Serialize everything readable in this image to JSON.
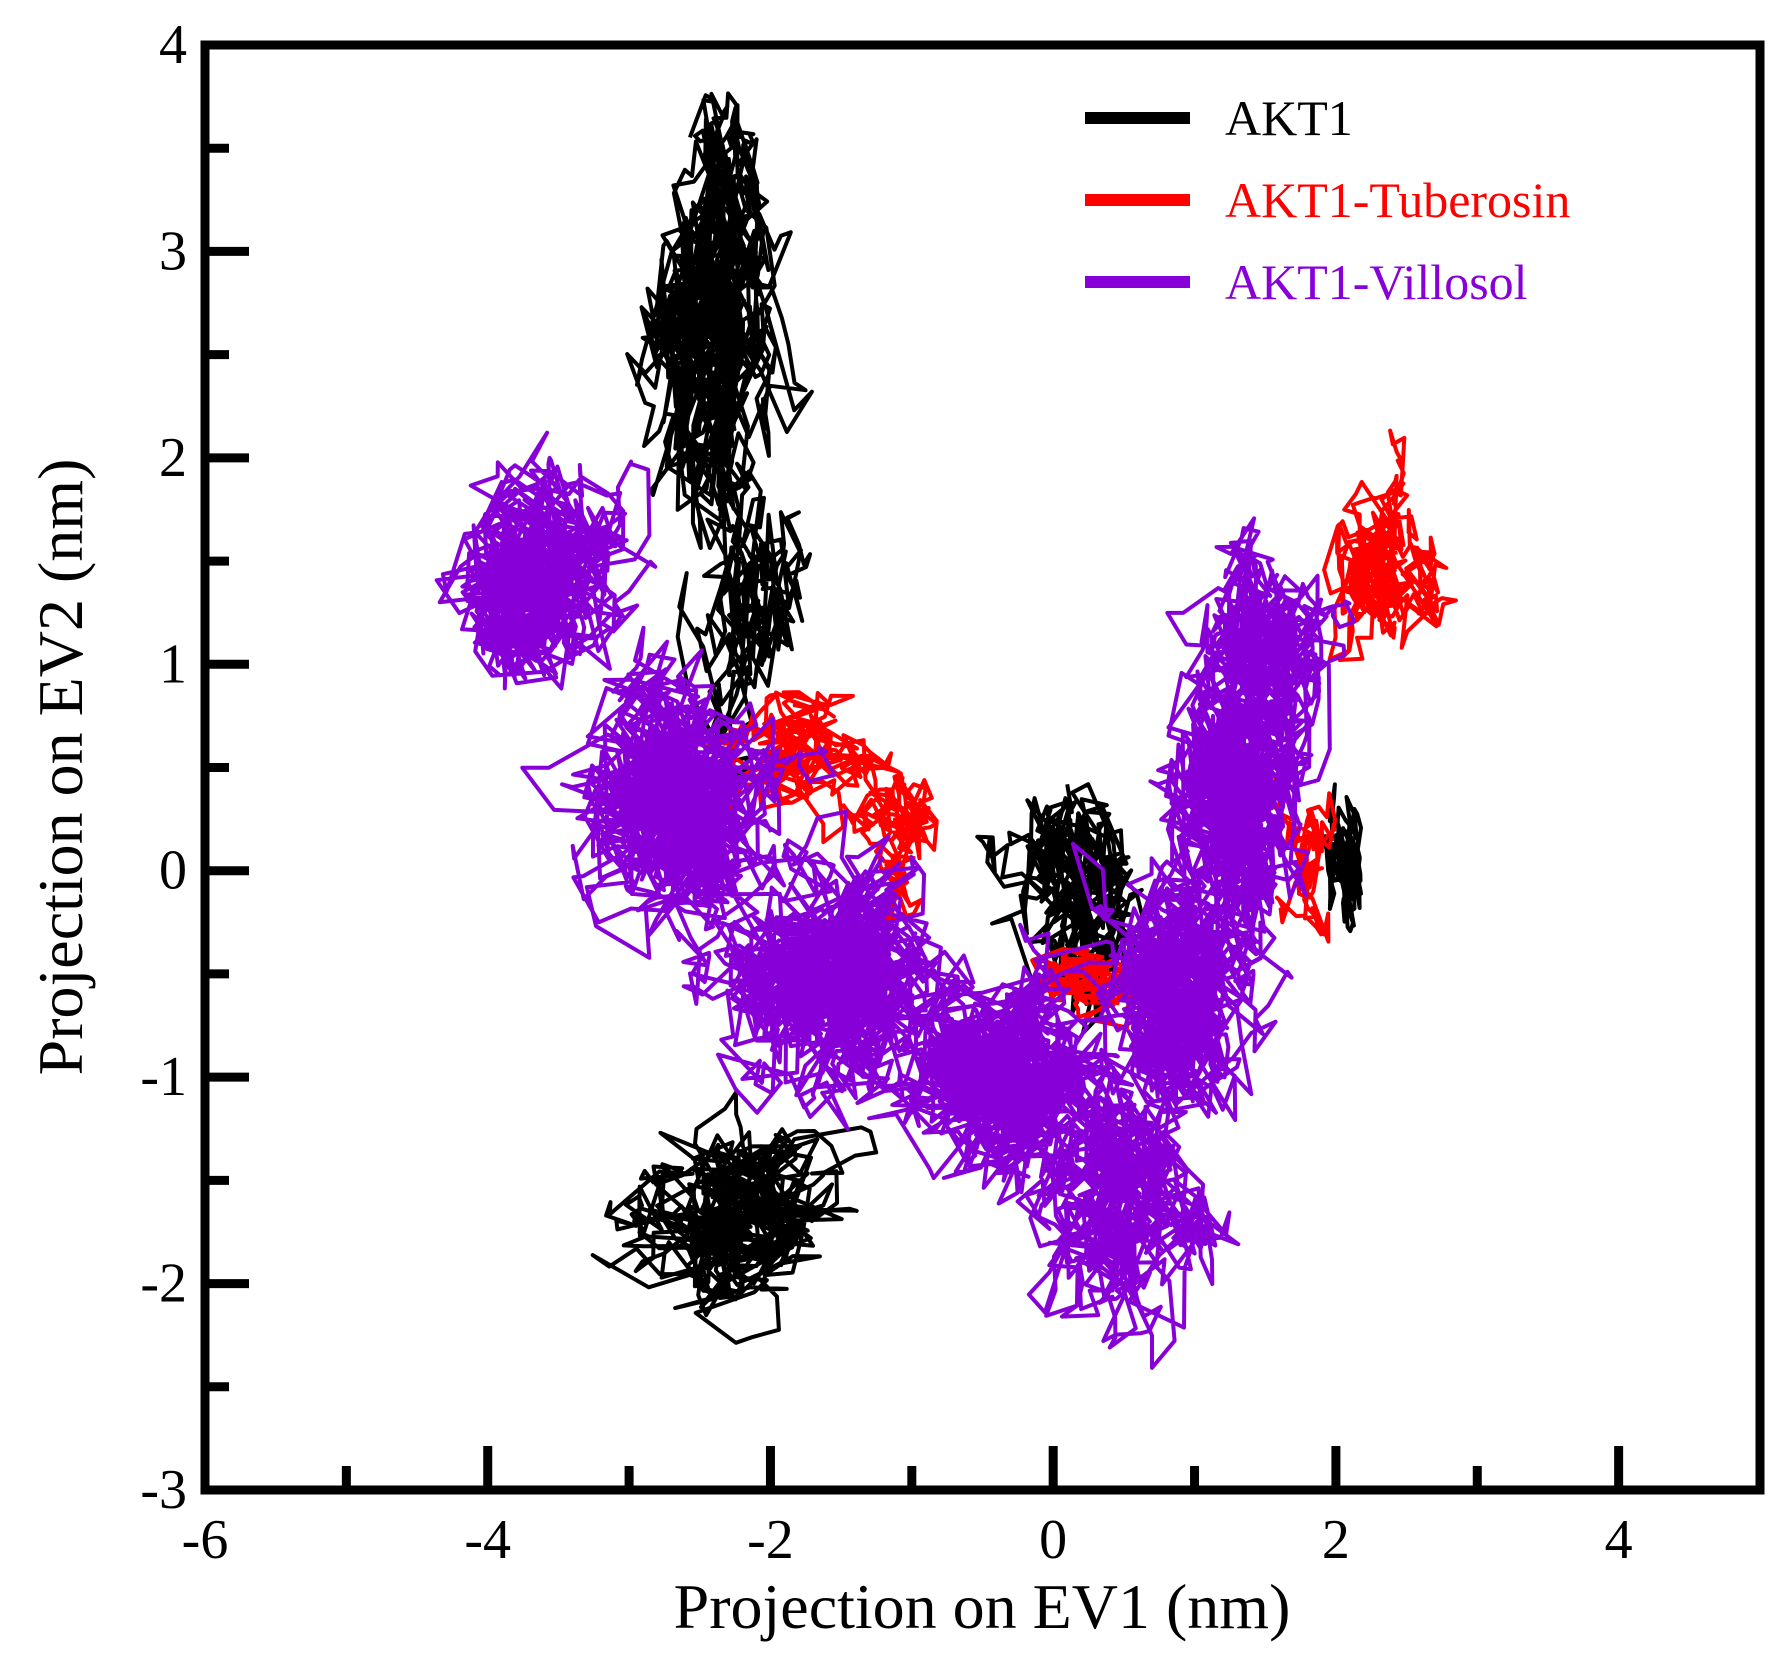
{
  "chart_data": {
    "type": "scatter",
    "title": "",
    "xlabel": "Projection on EV1 (nm)",
    "ylabel": "Projection on EV2 (nm)",
    "xlim": [
      -6,
      5
    ],
    "ylim": [
      -3,
      4
    ],
    "xticks": [
      -6,
      -4,
      -2,
      0,
      2,
      4
    ],
    "yticks": [
      -3,
      -2,
      -1,
      0,
      1,
      2,
      3,
      4
    ],
    "xtick_labels": [
      "-6",
      "-4",
      "-2",
      "0",
      "2",
      "4"
    ],
    "ytick_labels": [
      "-3",
      "-2",
      "-1",
      "0",
      "1",
      "2",
      "3",
      "4"
    ],
    "grid": false,
    "legend_position": "top-right",
    "series": [
      {
        "name": "AKT1",
        "color": "#000000",
        "clusters": [
          {
            "center": [
              -2.4,
              2.6
            ],
            "spread": [
              0.35,
              0.6
            ],
            "n": 700
          },
          {
            "center": [
              -2.2,
              1.3
            ],
            "spread": [
              0.25,
              0.5
            ],
            "n": 250
          },
          {
            "center": [
              -2.3,
              3.4
            ],
            "spread": [
              0.15,
              0.3
            ],
            "n": 120
          },
          {
            "center": [
              -2.3,
              -1.7
            ],
            "spread": [
              0.5,
              0.3
            ],
            "n": 600
          },
          {
            "center": [
              0.2,
              0.0
            ],
            "spread": [
              0.35,
              0.45
            ],
            "n": 350
          },
          {
            "center": [
              2.05,
              0.0
            ],
            "spread": [
              0.1,
              0.3
            ],
            "n": 150
          }
        ]
      },
      {
        "name": "AKT1-Tuberosin",
        "color": "#ff0000",
        "clusters": [
          {
            "center": [
              2.3,
              1.5
            ],
            "spread": [
              0.25,
              0.3
            ],
            "n": 350
          },
          {
            "center": [
              -1.8,
              0.6
            ],
            "spread": [
              0.35,
              0.2
            ],
            "n": 300
          },
          {
            "center": [
              -1.1,
              0.15
            ],
            "spread": [
              0.25,
              0.2
            ],
            "n": 200
          },
          {
            "center": [
              0.2,
              -0.55
            ],
            "spread": [
              0.3,
              0.12
            ],
            "n": 200
          },
          {
            "center": [
              1.8,
              0.05
            ],
            "spread": [
              0.15,
              0.25
            ],
            "n": 120
          }
        ]
      },
      {
        "name": "AKT1-Villosol",
        "color": "#8800d8",
        "clusters": [
          {
            "center": [
              -3.7,
              1.4
            ],
            "spread": [
              0.45,
              0.35
            ],
            "n": 900
          },
          {
            "center": [
              -2.6,
              0.3
            ],
            "spread": [
              0.5,
              0.4
            ],
            "n": 1100
          },
          {
            "center": [
              -1.6,
              -0.5
            ],
            "spread": [
              0.5,
              0.4
            ],
            "n": 1200
          },
          {
            "center": [
              -0.4,
              -1.0
            ],
            "spread": [
              0.5,
              0.35
            ],
            "n": 1100
          },
          {
            "center": [
              0.5,
              -1.6
            ],
            "spread": [
              0.4,
              0.35
            ],
            "n": 700
          },
          {
            "center": [
              0.9,
              -0.6
            ],
            "spread": [
              0.4,
              0.4
            ],
            "n": 900
          },
          {
            "center": [
              1.3,
              0.3
            ],
            "spread": [
              0.35,
              0.45
            ],
            "n": 900
          },
          {
            "center": [
              1.5,
              1.1
            ],
            "spread": [
              0.3,
              0.3
            ],
            "n": 600
          }
        ]
      }
    ]
  }
}
